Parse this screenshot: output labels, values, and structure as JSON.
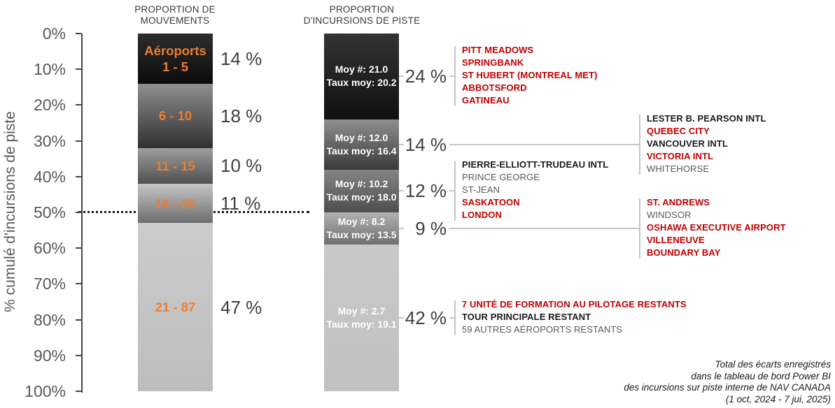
{
  "chart_data": {
    "type": "bar",
    "variant": "paired-100pct-stacked-columns",
    "title": "",
    "ylabel": "% cumulé d'incursions de piste",
    "y_ticks": [
      "0%",
      "10%",
      "20%",
      "30%",
      "40%",
      "50%",
      "60%",
      "70%",
      "80%",
      "90%",
      "100%"
    ],
    "ylim": [
      0,
      100
    ],
    "grid": false,
    "reference_line_pct": 50,
    "palette": {
      "red": "#C00000",
      "black": "#1A1A1A",
      "gray": "#595959",
      "orange": "#ED7D31",
      "leader_gray": "#C6C6C6",
      "value_label_gray": "#3F3F3F"
    },
    "columns": [
      {
        "title_lines": [
          "PROPORTION DE",
          "MOUVEMENTS"
        ],
        "segments": [
          {
            "label_lines": [
              "Aéroports",
              "1 - 5"
            ],
            "pct": 14,
            "pct_label": "14 %",
            "color_top": "#2d2d2d",
            "color_bottom": "#0c0c0c",
            "label_color": "#ED7D31"
          },
          {
            "label_lines": [
              "6 - 10"
            ],
            "pct": 18,
            "pct_label": "18 %",
            "color_top": "#8f8f8f",
            "color_bottom": "#303030",
            "label_color": "#ED7D31"
          },
          {
            "label_lines": [
              "11 - 15"
            ],
            "pct": 10,
            "pct_label": "10 %",
            "color_top": "#9e9e9e",
            "color_bottom": "#4f4f4f",
            "label_color": "#ED7D31"
          },
          {
            "label_lines": [
              "16 - 20"
            ],
            "pct": 11,
            "pct_label": "11 %",
            "color_top": "#c6c6c6",
            "color_bottom": "#6d6d6d",
            "label_color": "#ED7D31"
          },
          {
            "label_lines": [
              "21 - 87"
            ],
            "pct": 47,
            "pct_label": "47 %",
            "color_top": "#cccccc",
            "color_bottom": "#bdbdbd",
            "label_color": "#ED7D31"
          }
        ]
      },
      {
        "title_lines": [
          "PROPORTION",
          "D'INCURSIONS DE PISTE"
        ],
        "segments": [
          {
            "label_lines": [
              "Moy #: 21.0",
              "Taux moy: 20.2"
            ],
            "pct": 24,
            "pct_label": "24 %",
            "color_top": "#333333",
            "color_bottom": "#101010",
            "label_color": "#FFFFFF",
            "airports": {
              "position": "near",
              "items": [
                {
                  "name": "PITT MEADOWS",
                  "style": "red"
                },
                {
                  "name": "SPRINGBANK",
                  "style": "red"
                },
                {
                  "name": "ST HUBERT (MONTREAL MET)",
                  "style": "red"
                },
                {
                  "name": "ABBOTSFORD",
                  "style": "red"
                },
                {
                  "name": "GATINEAU",
                  "style": "red"
                }
              ]
            }
          },
          {
            "label_lines": [
              "Moy #: 12.0",
              "Taux moy: 16.4"
            ],
            "pct": 14,
            "pct_label": "14 %",
            "color_top": "#8f8f8f",
            "color_bottom": "#3a3a3a",
            "label_color": "#FFFFFF",
            "airports": {
              "position": "far",
              "items": [
                {
                  "name": "LESTER B. PEARSON INTL",
                  "style": "black"
                },
                {
                  "name": "QUEBEC CITY",
                  "style": "red"
                },
                {
                  "name": "VANCOUVER INTL",
                  "style": "black"
                },
                {
                  "name": "VICTORIA INTL",
                  "style": "red"
                },
                {
                  "name": "WHITEHORSE",
                  "style": "gray"
                }
              ]
            }
          },
          {
            "label_lines": [
              "Moy #: 10.2",
              "Taux moy: 18.0"
            ],
            "pct": 12,
            "pct_label": "12 %",
            "color_top": "#858585",
            "color_bottom": "#4e4e4e",
            "label_color": "#FFFFFF",
            "airports": {
              "position": "near",
              "items": [
                {
                  "name": "PIERRE-ELLIOTT-TRUDEAU INTL",
                  "style": "black"
                },
                {
                  "name": "PRINCE GEORGE",
                  "style": "gray"
                },
                {
                  "name": "ST-JEAN",
                  "style": "gray"
                },
                {
                  "name": "SASKATOON",
                  "style": "red"
                },
                {
                  "name": "LONDON",
                  "style": "red"
                }
              ]
            }
          },
          {
            "label_lines": [
              "Moy #: 8.2",
              "Taux moy: 13.5"
            ],
            "pct": 9,
            "pct_label": "9 %",
            "color_top": "#b2b2b2",
            "color_bottom": "#6f6f6f",
            "label_color": "#FFFFFF",
            "airports": {
              "position": "far",
              "items": [
                {
                  "name": "ST. ANDREWS",
                  "style": "red"
                },
                {
                  "name": "WINDSOR",
                  "style": "gray"
                },
                {
                  "name": "OSHAWA EXECUTIVE AIRPORT",
                  "style": "red"
                },
                {
                  "name": "VILLENEUVE",
                  "style": "red"
                },
                {
                  "name": "BOUNDARY BAY",
                  "style": "red"
                }
              ]
            }
          },
          {
            "label_lines": [
              "Moy #: 2.7",
              "Taux moy: 19.1"
            ],
            "pct": 42,
            "pct_label": "42 %",
            "color_top": "#c9c9c9",
            "color_bottom": "#c0c0c0",
            "label_color": "#FFFFFF",
            "airports": {
              "position": "near",
              "items": [
                {
                  "name": "7 UNITÉ DE FORMATION AU PILOTAGE RESTANTS",
                  "style": "red"
                },
                {
                  "name": "TOUR PRINCIPALE RESTANT",
                  "style": "black"
                },
                {
                  "name": "59 AUTRES AÉROPORTS RESTANTS",
                  "style": "gray"
                }
              ]
            }
          }
        ]
      }
    ],
    "source_note_lines": [
      "Total des écarts enregistrés",
      "dans le tableau de bord Power BI",
      "des incursions sur piste interne de NAV CANADA",
      "(1 oct, 2024 - 7 jui, 2025)"
    ]
  }
}
